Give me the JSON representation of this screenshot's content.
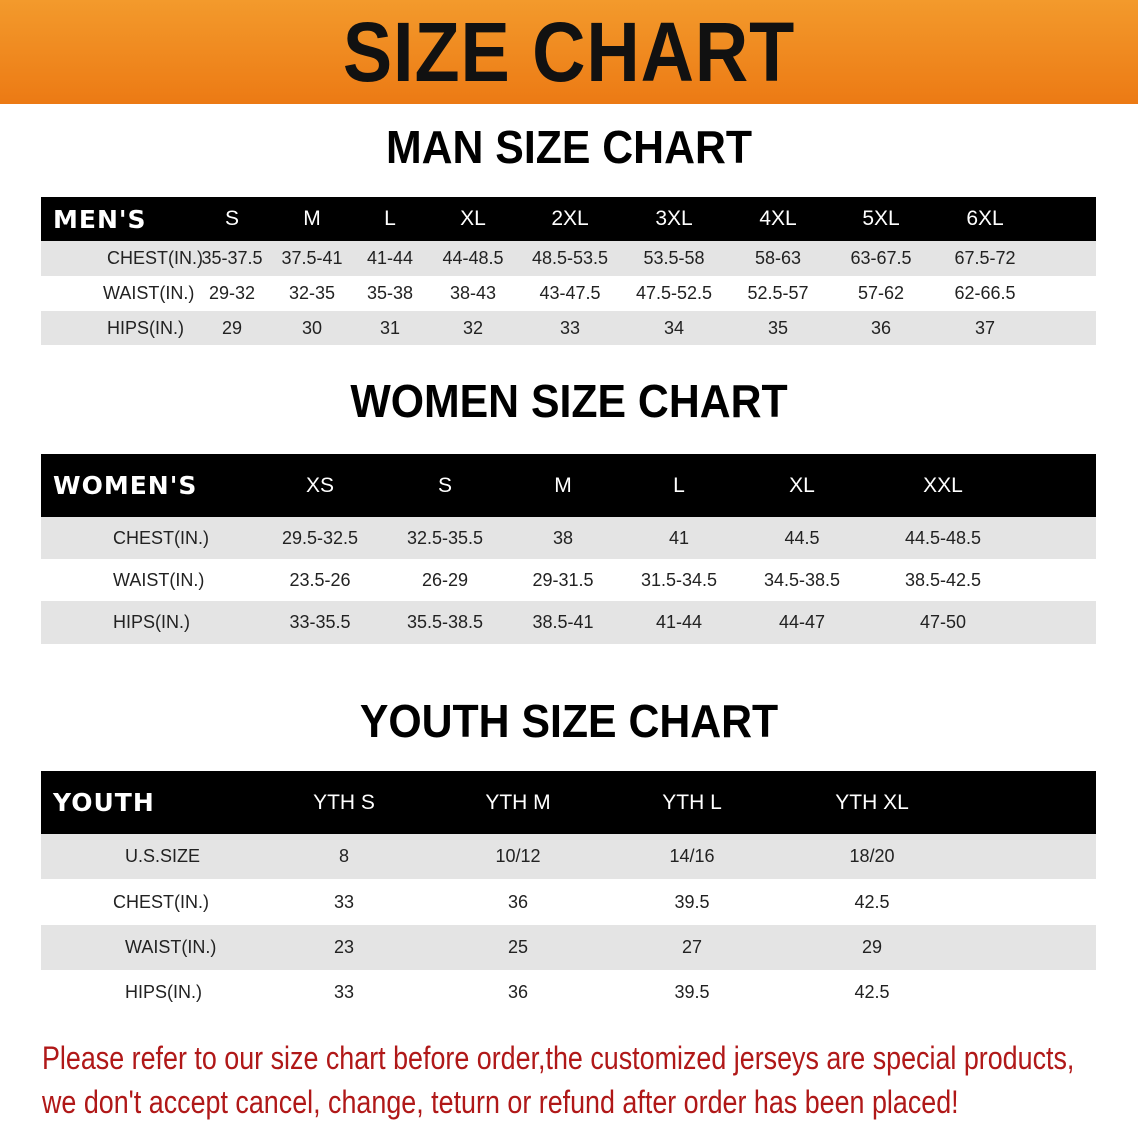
{
  "banner": {
    "title": "SIZE CHART",
    "color": "#ef861e"
  },
  "men": {
    "title": "MAN SIZE CHART",
    "header": [
      "MEN'S",
      "S",
      "M",
      "L",
      "XL",
      "2XL",
      "3XL",
      "4XL",
      "5XL",
      "6XL"
    ],
    "rows": [
      [
        "CHEST(IN.)",
        "35-37.5",
        "37.5-41",
        "41-44",
        "44-48.5",
        "48.5-53.5",
        "53.5-58",
        "58-63",
        "63-67.5",
        "67.5-72"
      ],
      [
        "WAIST(IN.)",
        "29-32",
        "32-35",
        "35-38",
        "38-43",
        "43-47.5",
        "47.5-52.5",
        "52.5-57",
        "57-62",
        "62-66.5"
      ],
      [
        "HIPS(IN.)",
        "29",
        "30",
        "31",
        "32",
        "33",
        "34",
        "35",
        "36",
        "37"
      ]
    ]
  },
  "women": {
    "title": "WOMEN SIZE CHART",
    "header": [
      "WOMEN'S",
      "XS",
      "S",
      "M",
      "L",
      "XL",
      "XXL"
    ],
    "rows": [
      [
        "CHEST(IN.)",
        "29.5-32.5",
        "32.5-35.5",
        "38",
        "41",
        "44.5",
        "44.5-48.5"
      ],
      [
        "WAIST(IN.)",
        "23.5-26",
        "26-29",
        "29-31.5",
        "31.5-34.5",
        "34.5-38.5",
        "38.5-42.5"
      ],
      [
        "HIPS(IN.)",
        "33-35.5",
        "35.5-38.5",
        "38.5-41",
        "41-44",
        "44-47",
        "47-50"
      ]
    ]
  },
  "youth": {
    "title": "YOUTH SIZE CHART",
    "header": [
      "YOUTH",
      "YTH S",
      "YTH M",
      "YTH L",
      "YTH XL"
    ],
    "rows": [
      [
        "U.S.SIZE",
        "8",
        "10/12",
        "14/16",
        "18/20"
      ],
      [
        "CHEST(IN.)",
        "33",
        "36",
        "39.5",
        "42.5"
      ],
      [
        "WAIST(IN.)",
        "23",
        "25",
        "27",
        "29"
      ],
      [
        "HIPS(IN.)",
        "33",
        "36",
        "39.5",
        "42.5"
      ]
    ]
  },
  "note": {
    "line1": "Please refer to our size chart before order,the customized jerseys are special products,",
    "line2": "we don't accept cancel, change, teturn or refund after order has been placed!",
    "color": "#b01818"
  }
}
